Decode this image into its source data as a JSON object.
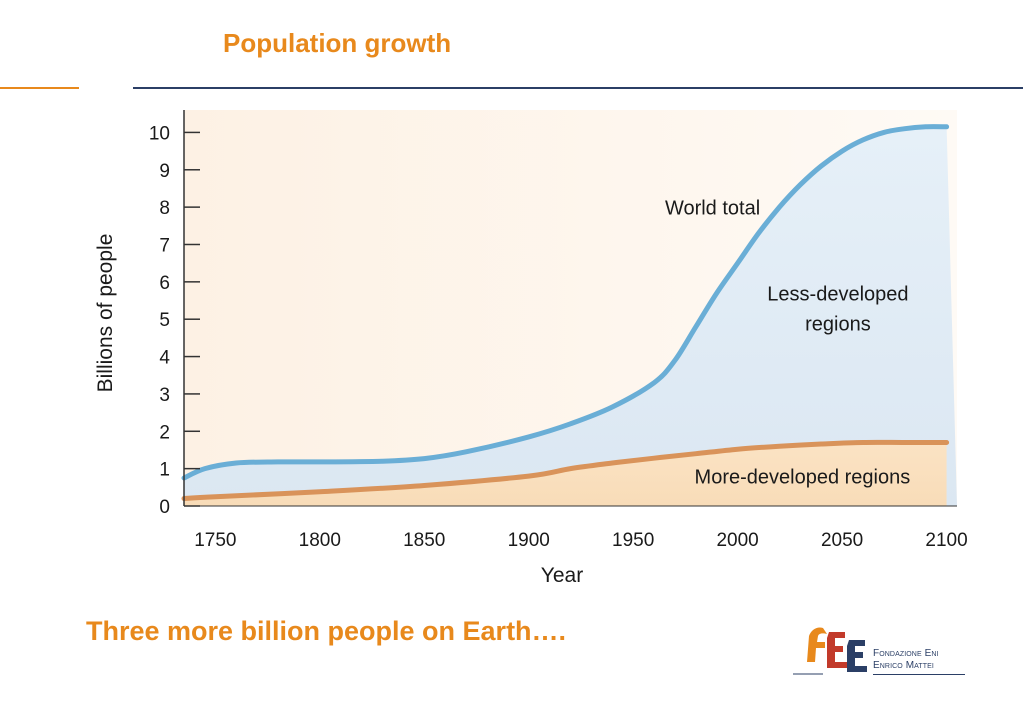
{
  "slide": {
    "title": "Population growth",
    "caption": "Three more billion people on Earth….",
    "accent_color": "#e8891c",
    "rule_color": "#2b3f66"
  },
  "logo": {
    "icon": "fee-monogram-icon",
    "line1": "Fondazione Eni",
    "line2": "Enrico Mattei"
  },
  "chart_data": {
    "type": "area",
    "title": "",
    "xlabel": "Year",
    "ylabel": "Billions of people",
    "xlim": [
      1735,
      2105
    ],
    "ylim": [
      0,
      10.6
    ],
    "x_ticks": [
      1750,
      1800,
      1850,
      1900,
      1950,
      2000,
      2050,
      2100
    ],
    "y_ticks": [
      0,
      1,
      2,
      3,
      4,
      5,
      6,
      7,
      8,
      9,
      10
    ],
    "grid": false,
    "series": [
      {
        "name": "World total",
        "color": "#6aaed6",
        "x": [
          1735,
          1745,
          1760,
          1780,
          1800,
          1830,
          1850,
          1870,
          1900,
          1920,
          1940,
          1960,
          1970,
          1980,
          1990,
          2000,
          2010,
          2020,
          2030,
          2040,
          2050,
          2060,
          2070,
          2080,
          2090,
          2100
        ],
        "values": [
          0.75,
          1.0,
          1.15,
          1.18,
          1.18,
          1.2,
          1.27,
          1.45,
          1.85,
          2.2,
          2.65,
          3.3,
          3.9,
          4.8,
          5.7,
          6.5,
          7.3,
          8.0,
          8.6,
          9.1,
          9.5,
          9.8,
          10.0,
          10.1,
          10.15,
          10.15
        ]
      },
      {
        "name": "More-developed regions",
        "color": "#d9935a",
        "x": [
          1735,
          1750,
          1800,
          1850,
          1900,
          1920,
          1940,
          1960,
          1980,
          2000,
          2020,
          2040,
          2060,
          2080,
          2100
        ],
        "values": [
          0.2,
          0.25,
          0.38,
          0.55,
          0.8,
          1.0,
          1.15,
          1.28,
          1.4,
          1.52,
          1.6,
          1.66,
          1.7,
          1.7,
          1.7
        ]
      }
    ],
    "annotations": [
      {
        "text": "World total",
        "x": 1988,
        "y": 7.8
      },
      {
        "text": "Less-developed",
        "x": 2048,
        "y": 5.5
      },
      {
        "text": "regions",
        "x": 2048,
        "y": 4.7
      },
      {
        "text": "More-developed regions",
        "x": 2031,
        "y": 0.6
      }
    ]
  }
}
